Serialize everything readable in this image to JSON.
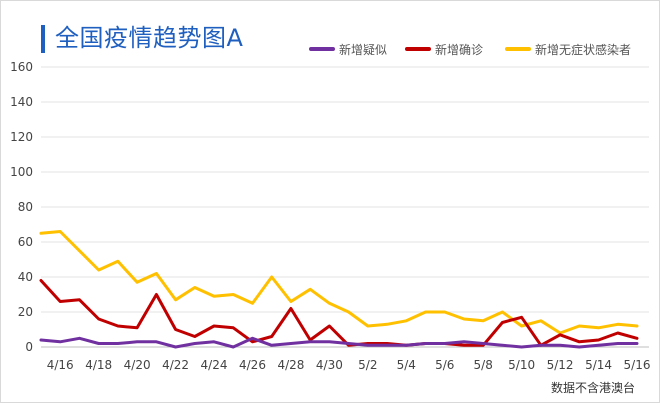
{
  "chart_data": {
    "type": "line",
    "title": "全国疫情趋势图A",
    "note": "数据不含港澳台",
    "x": [
      "4/15",
      "4/16",
      "4/17",
      "4/18",
      "4/19",
      "4/20",
      "4/21",
      "4/22",
      "4/23",
      "4/24",
      "4/25",
      "4/26",
      "4/27",
      "4/28",
      "4/29",
      "4/30",
      "5/1",
      "5/2",
      "5/3",
      "5/4",
      "5/5",
      "5/6",
      "5/7",
      "5/8",
      "5/9",
      "5/10",
      "5/11",
      "5/12",
      "5/13",
      "5/14",
      "5/15",
      "5/16"
    ],
    "x_tick_labels": [
      "4/16",
      "4/18",
      "4/20",
      "4/22",
      "4/24",
      "4/26",
      "4/28",
      "4/30",
      "5/2",
      "5/4",
      "5/6",
      "5/8",
      "5/10",
      "5/12",
      "5/14",
      "5/16"
    ],
    "ylim": [
      0,
      160
    ],
    "y_ticks": [
      0,
      20,
      40,
      60,
      80,
      100,
      120,
      140,
      160
    ],
    "grid": true,
    "legend": "top-right",
    "series": [
      {
        "name": "新增疑似",
        "color": "#7030a0",
        "values": [
          4,
          3,
          5,
          2,
          2,
          3,
          3,
          0,
          2,
          3,
          0,
          5,
          1,
          2,
          3,
          3,
          2,
          1,
          1,
          1,
          2,
          2,
          3,
          2,
          1,
          0,
          1,
          1,
          0,
          1,
          2,
          2
        ]
      },
      {
        "name": "新增确诊",
        "color": "#c00000",
        "values": [
          38,
          26,
          27,
          16,
          12,
          11,
          30,
          10,
          6,
          12,
          11,
          3,
          6,
          22,
          4,
          12,
          1,
          2,
          2,
          1,
          2,
          2,
          1,
          1,
          14,
          17,
          1,
          7,
          3,
          4,
          8,
          5
        ]
      },
      {
        "name": "新增无症状感染者",
        "color": "#ffc000",
        "values": [
          65,
          66,
          55,
          44,
          49,
          37,
          42,
          27,
          34,
          29,
          30,
          25,
          40,
          26,
          33,
          25,
          20,
          12,
          13,
          15,
          20,
          20,
          16,
          15,
          20,
          12,
          15,
          8,
          12,
          11,
          13,
          12
        ]
      }
    ]
  }
}
